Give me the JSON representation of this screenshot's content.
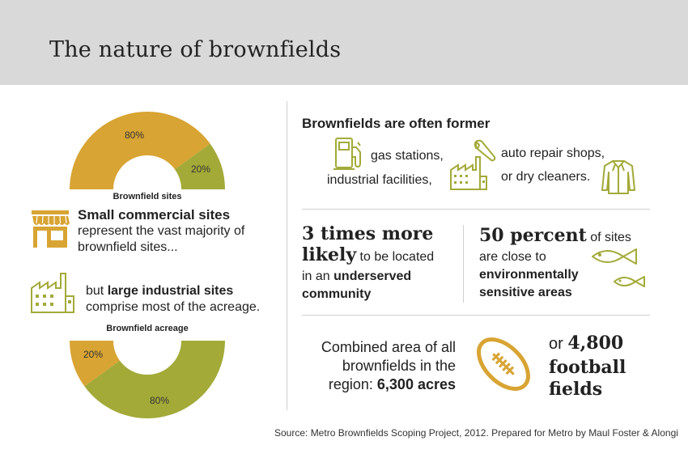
{
  "title": "The nature of brownfields",
  "colors": {
    "gold": "#d8a433",
    "olive": "#a3aa38",
    "header_bg": "#d9d9d9",
    "divider": "#cfcfcf"
  },
  "sites_donut": {
    "caption": "Brownfield sites",
    "slices": [
      {
        "label": "80%",
        "value": 80,
        "color": "#d8a433"
      },
      {
        "label": "20%",
        "value": 20,
        "color": "#a3aa38"
      }
    ]
  },
  "acreage_donut": {
    "caption": "Brownfield acreage",
    "slices": [
      {
        "label": "20%",
        "value": 20,
        "color": "#d8a433"
      },
      {
        "label": "80%",
        "value": 80,
        "color": "#a3aa38"
      }
    ]
  },
  "small_sites": {
    "icon": "storefront-icon",
    "bold": "Small commercial sites",
    "line2": "represent the vast majority of",
    "line3": "brownfield sites..."
  },
  "large_sites": {
    "icon": "factory-icon",
    "prefix": "but ",
    "bold": "large industrial sites",
    "line2": "comprise most of the acreage."
  },
  "former": {
    "heading": "Brownfields are often former",
    "gas": "gas stations,",
    "industrial": "industrial facilities,",
    "auto": "auto repair shops,",
    "dry": "or dry cleaners.",
    "icons": [
      "gas-pump-icon",
      "wrench-icon",
      "factory-icon",
      "shirt-icon"
    ]
  },
  "likely": {
    "big1": "3 times more",
    "big2": "likely",
    "rest1": " to be located",
    "rest2": "in an ",
    "bold1": "underserved",
    "bold2": "community"
  },
  "percent": {
    "big": "50 percent",
    "rest1": " of sites",
    "line2": "are close to",
    "bold1": "environmentally",
    "bold2": "sensitive areas",
    "icon": "fish-icon"
  },
  "area": {
    "line1": "Combined area of all",
    "line2": "brownfields in the",
    "line3_prefix": "region: ",
    "line3_bold": "6,300 acres",
    "icon": "football-icon",
    "or_prefix": "or ",
    "or_num": "4,800",
    "or_line2": "football",
    "or_line3": "fields"
  },
  "source": "Source: Metro Brownfields Scoping Project, 2012. Prepared for Metro by Maul Foster & Alongi"
}
